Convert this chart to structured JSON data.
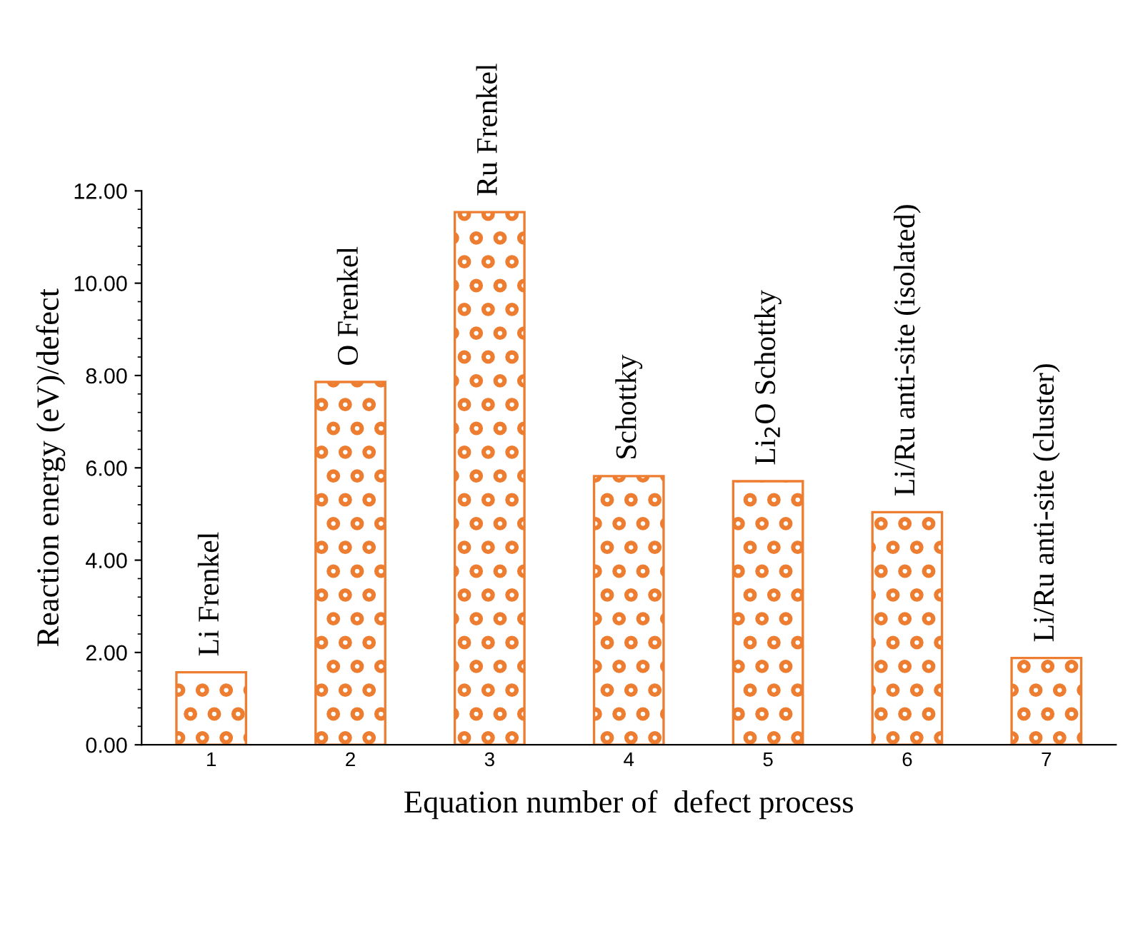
{
  "chart_data": {
    "type": "bar",
    "xlabel": "Equation number of  defect process",
    "ylabel": "Reaction energy (eV)/defect",
    "categories": [
      "1",
      "2",
      "3",
      "4",
      "5",
      "6",
      "7"
    ],
    "values": [
      1.57,
      7.86,
      11.54,
      5.82,
      5.71,
      5.04,
      1.88
    ],
    "color": "#ed7d31",
    "ylim": [
      0,
      12
    ],
    "yticks": [
      {
        "value": 0,
        "label": "0.00"
      },
      {
        "value": 2,
        "label": "2.00"
      },
      {
        "value": 4,
        "label": "4.00"
      },
      {
        "value": 6,
        "label": "6.00"
      },
      {
        "value": 8,
        "label": "8.00"
      },
      {
        "value": 10,
        "label": "10.00"
      },
      {
        "value": 12,
        "label": "12.00"
      }
    ],
    "grid": false,
    "annotations": [
      {
        "text": "Li Frenkel",
        "x": "1",
        "y": 1.57
      },
      {
        "text": "O Frenkel",
        "x": "2",
        "y": 7.86
      },
      {
        "text": "Ru Frenkel",
        "x": "3",
        "y": 11.54
      },
      {
        "text": "Schottky",
        "x": "4",
        "y": 5.82
      },
      {
        "text": "Li$_{2}$O Schottky",
        "x": "5",
        "y": 5.71
      },
      {
        "text": "Li/Ru anti-site (isolated)",
        "x": "6",
        "y": 5.04
      },
      {
        "text": "Li/Ru anti-site (cluster)",
        "x": "7",
        "y": 1.88
      }
    ]
  }
}
